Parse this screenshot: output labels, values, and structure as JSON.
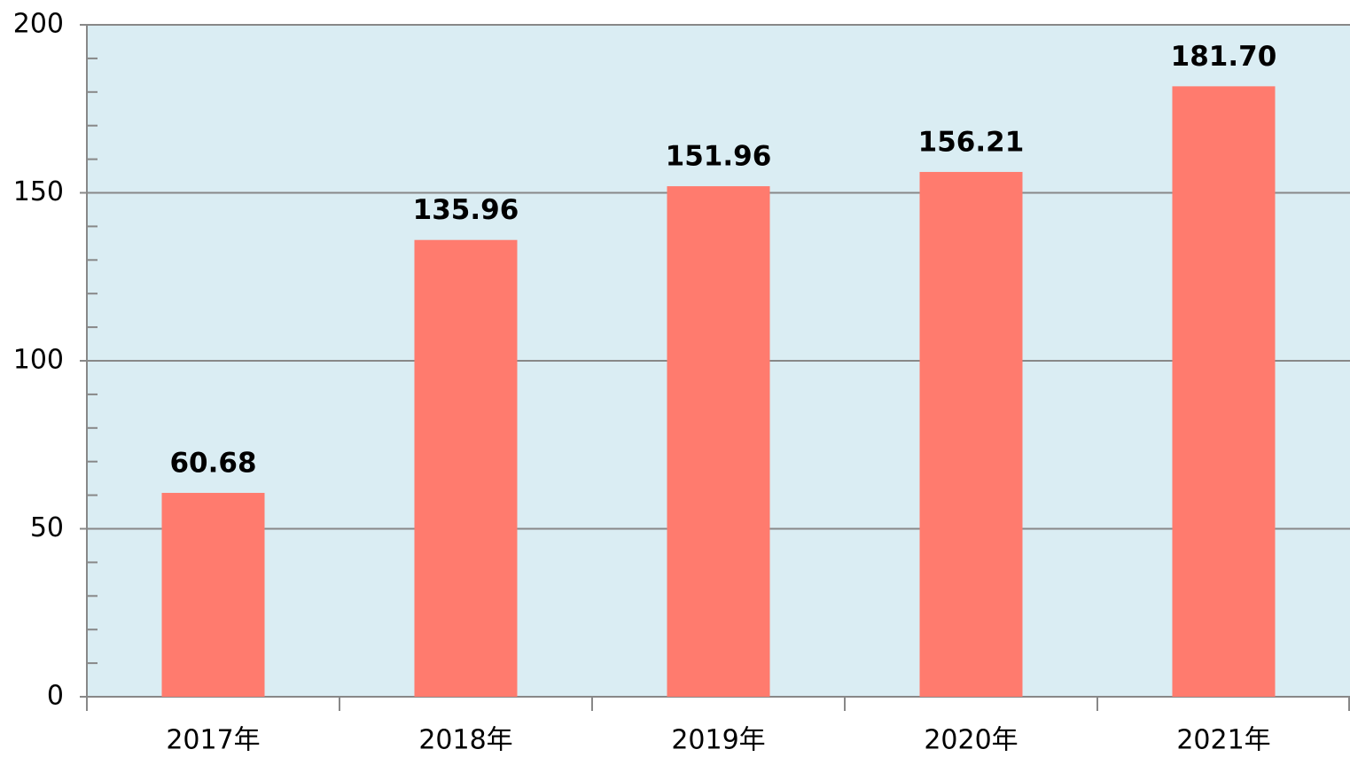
{
  "chart_data": {
    "type": "bar",
    "categories": [
      "2017年",
      "2018年",
      "2019年",
      "2020年",
      "2021年"
    ],
    "values": [
      60.68,
      135.96,
      151.96,
      156.21,
      181.7
    ],
    "value_labels": [
      "60.68",
      "135.96",
      "151.96",
      "156.21",
      "181.70"
    ],
    "color": "#ff7b6e",
    "ylim": [
      0,
      200
    ],
    "yticks": [
      0,
      50,
      100,
      150,
      200
    ],
    "yminorticks": [
      10,
      20,
      30,
      40,
      60,
      70,
      80,
      90,
      110,
      120,
      130,
      140,
      160,
      170,
      180,
      190
    ],
    "grid": true
  }
}
